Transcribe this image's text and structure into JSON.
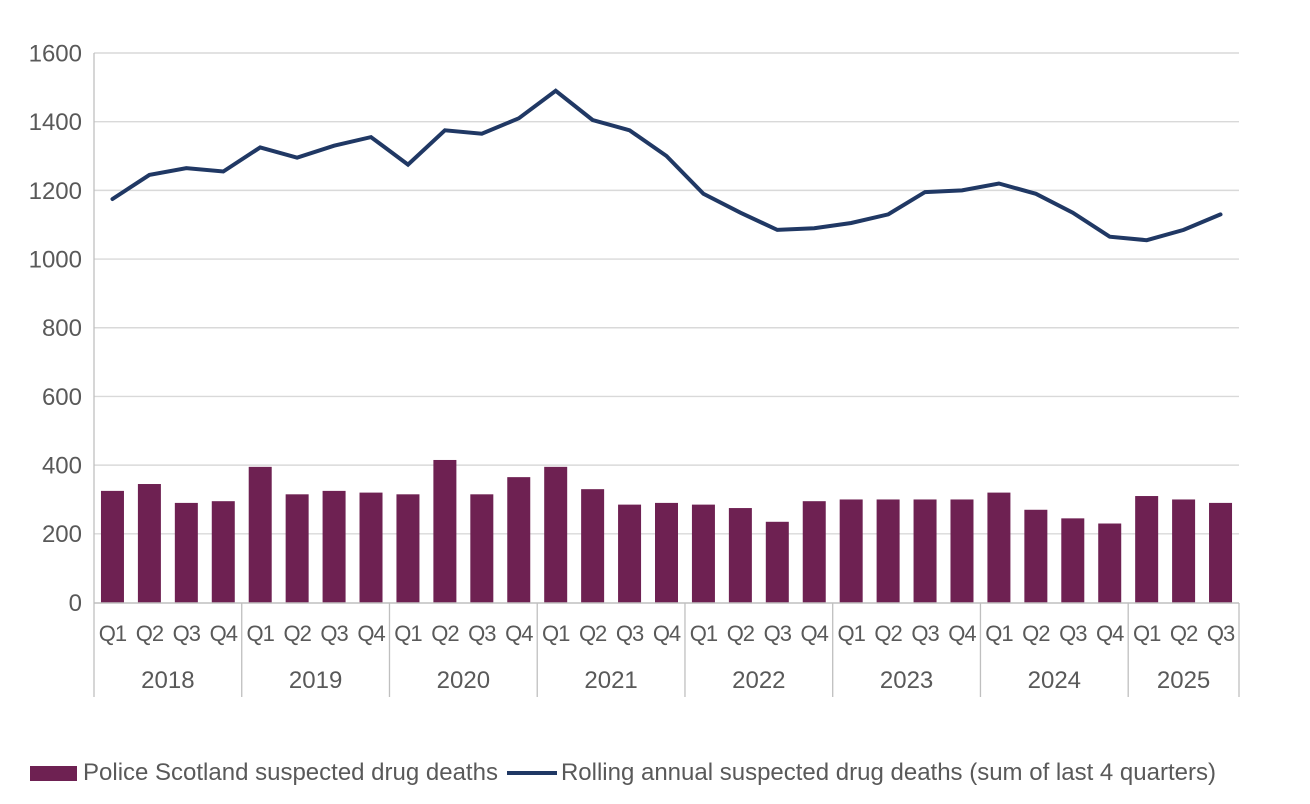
{
  "chart_data": {
    "type": "bar",
    "subtype": "combo-bar-line",
    "title": "",
    "xlabel": "",
    "ylabel": "",
    "ylim": [
      0,
      1600
    ],
    "ytick_step": 200,
    "yticks": [
      0,
      200,
      400,
      600,
      800,
      1000,
      1200,
      1400,
      1600
    ],
    "grid": "horizontal",
    "legend_position": "bottom",
    "categories": [
      "2018 Q1",
      "2018 Q2",
      "2018 Q3",
      "2018 Q4",
      "2019 Q1",
      "2019 Q2",
      "2019 Q3",
      "2019 Q4",
      "2020 Q1",
      "2020 Q2",
      "2020 Q3",
      "2020 Q4",
      "2021 Q1",
      "2021 Q2",
      "2021 Q3",
      "2021 Q4",
      "2022 Q1",
      "2022 Q2",
      "2022 Q3",
      "2022 Q4",
      "2023 Q1",
      "2023 Q2",
      "2023 Q3",
      "2023 Q4",
      "2024 Q1",
      "2024 Q2",
      "2024 Q3",
      "2024 Q4",
      "2025 Q1",
      "2025 Q2",
      "2025 Q3"
    ],
    "year_groups": [
      {
        "year": "2018",
        "quarters": [
          "Q1",
          "Q2",
          "Q3",
          "Q4"
        ]
      },
      {
        "year": "2019",
        "quarters": [
          "Q1",
          "Q2",
          "Q3",
          "Q4"
        ]
      },
      {
        "year": "2020",
        "quarters": [
          "Q1",
          "Q2",
          "Q3",
          "Q4"
        ]
      },
      {
        "year": "2021",
        "quarters": [
          "Q1",
          "Q2",
          "Q3",
          "Q4"
        ]
      },
      {
        "year": "2022",
        "quarters": [
          "Q1",
          "Q2",
          "Q3",
          "Q4"
        ]
      },
      {
        "year": "2023",
        "quarters": [
          "Q1",
          "Q2",
          "Q3",
          "Q4"
        ]
      },
      {
        "year": "2024",
        "quarters": [
          "Q1",
          "Q2",
          "Q3",
          "Q4"
        ]
      },
      {
        "year": "2025",
        "quarters": [
          "Q1",
          "Q2",
          "Q3"
        ]
      }
    ],
    "series": [
      {
        "name": "Police Scotland suspected drug deaths",
        "type": "bar",
        "color": "#6E2152",
        "values": [
          325,
          345,
          290,
          295,
          395,
          315,
          325,
          320,
          315,
          415,
          315,
          365,
          395,
          330,
          285,
          290,
          285,
          275,
          235,
          295,
          300,
          300,
          300,
          300,
          320,
          270,
          245,
          230,
          310,
          300,
          290
        ]
      },
      {
        "name": "Rolling annual suspected drug deaths (sum of last 4 quarters)",
        "type": "line",
        "color": "#203864",
        "values": [
          1175,
          1245,
          1265,
          1255,
          1325,
          1295,
          1330,
          1355,
          1275,
          1375,
          1365,
          1410,
          1490,
          1405,
          1375,
          1300,
          1190,
          1135,
          1085,
          1090,
          1105,
          1130,
          1195,
          1200,
          1220,
          1190,
          1135,
          1065,
          1055,
          1085,
          1130
        ]
      }
    ],
    "colors": {
      "bar": "#6E2152",
      "line": "#203864",
      "gridline": "#D9D9D9",
      "axis": "#BFBFBF",
      "text": "#595959",
      "background": "#FFFFFF"
    }
  }
}
